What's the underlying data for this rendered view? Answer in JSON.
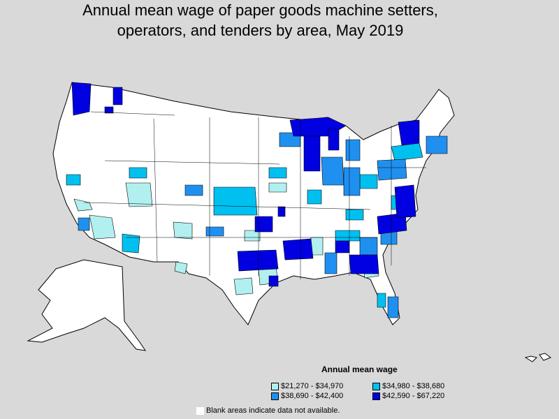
{
  "title_line1": "Annual mean wage of paper goods machine setters,",
  "title_line2": "operators, and tenders by area, May 2019",
  "legend": {
    "title": "Annual mean wage",
    "items": [
      {
        "label": "$21,270 - $34,970",
        "color": "#b2f0f0"
      },
      {
        "label": "$34,980 - $38,680",
        "color": "#00c0f0"
      },
      {
        "label": "$38,690 - $42,400",
        "color": "#2090f0"
      },
      {
        "label": "$42,590 - $67,220",
        "color": "#0000e0"
      }
    ]
  },
  "blank_note": "Blank areas indicate data not available.",
  "colors": {
    "background": "#d9d9d9",
    "no_data": "#ffffff",
    "border": "#000000"
  }
}
